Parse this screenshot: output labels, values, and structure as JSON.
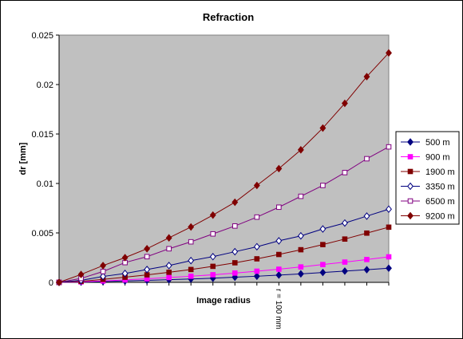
{
  "chart_data": {
    "type": "line",
    "title": "Refraction",
    "xlabel": "Image radius",
    "ylabel": "dr [mm]",
    "annotation": "r = 100 mm",
    "ylim": [
      0,
      0.025
    ],
    "y_ticks": [
      "0",
      "0.005",
      "0.01",
      "0.015",
      "0.02",
      "0.025"
    ],
    "grid": false,
    "legend_position": "right",
    "plot_background": "#C0C0C0",
    "x": [
      0,
      1,
      2,
      3,
      4,
      5,
      6,
      7,
      8,
      9,
      10,
      11,
      12,
      13,
      14,
      15
    ],
    "series": [
      {
        "name": "500 m",
        "color": "#000080",
        "marker": "diamond-filled",
        "values": [
          0,
          3e-05,
          8e-05,
          0.00014,
          0.0002,
          0.00027,
          0.00034,
          0.00042,
          0.00052,
          0.00062,
          0.00074,
          0.00086,
          0.001,
          0.00114,
          0.00128,
          0.00143
        ]
      },
      {
        "name": "900 m",
        "color": "#FF00FF",
        "marker": "square-filled",
        "values": [
          0,
          5e-05,
          0.00014,
          0.00025,
          0.00036,
          0.00049,
          0.00062,
          0.00077,
          0.00094,
          0.00113,
          0.00133,
          0.00156,
          0.0018,
          0.00205,
          0.00231,
          0.00258
        ]
      },
      {
        "name": "1900 m",
        "color": "#800000",
        "marker": "square-filled",
        "values": [
          0,
          0.0001,
          0.0003,
          0.00052,
          0.00076,
          0.00102,
          0.0013,
          0.00162,
          0.00198,
          0.00238,
          0.00282,
          0.0033,
          0.00382,
          0.00438,
          0.00498,
          0.00558
        ]
      },
      {
        "name": "3350 m",
        "color": "#000080",
        "marker": "diamond-open",
        "values": [
          0,
          0.0002,
          0.0006,
          0.0009,
          0.0013,
          0.0017,
          0.0022,
          0.0026,
          0.0031,
          0.0036,
          0.0042,
          0.0047,
          0.0054,
          0.006,
          0.0067,
          0.0074
        ]
      },
      {
        "name": "6500 m",
        "color": "#800080",
        "marker": "square-open",
        "values": [
          0,
          0.0004,
          0.0011,
          0.002,
          0.0026,
          0.0034,
          0.0041,
          0.0049,
          0.0057,
          0.0066,
          0.0076,
          0.0087,
          0.0098,
          0.0111,
          0.0125,
          0.0137
        ]
      },
      {
        "name": "9200 m",
        "color": "#800000",
        "marker": "diamond-filled",
        "values": [
          0,
          0.0008,
          0.0017,
          0.0025,
          0.0034,
          0.0045,
          0.0056,
          0.0068,
          0.0081,
          0.0098,
          0.0115,
          0.0134,
          0.0156,
          0.0181,
          0.0208,
          0.0232
        ]
      }
    ]
  }
}
